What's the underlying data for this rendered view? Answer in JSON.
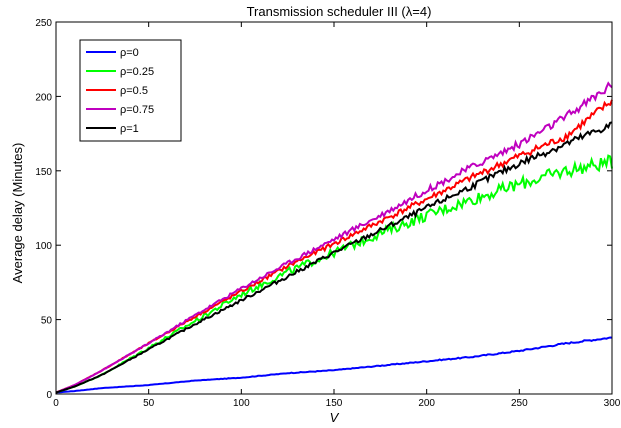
{
  "chart_data": {
    "type": "line",
    "title": "Transmission scheduler III (λ=4)",
    "xlabel": "V",
    "ylabel": "Average delay (Minutes)",
    "xlim": [
      0,
      300
    ],
    "ylim": [
      0,
      250
    ],
    "xticks": [
      0,
      50,
      100,
      150,
      200,
      250,
      300
    ],
    "yticks": [
      0,
      50,
      100,
      150,
      200,
      250
    ],
    "grid": false,
    "legend_position": "top-left",
    "series": [
      {
        "name": "ρ=0",
        "color": "#0000ff",
        "x": [
          0,
          10,
          25,
          50,
          75,
          100,
          125,
          150,
          175,
          200,
          225,
          250,
          275,
          300
        ],
        "y": [
          1,
          2,
          4,
          6,
          9,
          11,
          14,
          16,
          19,
          22,
          25,
          29,
          34,
          38
        ]
      },
      {
        "name": "ρ=0.25",
        "color": "#00ff00",
        "x": [
          0,
          10,
          25,
          50,
          75,
          100,
          125,
          150,
          175,
          200,
          225,
          250,
          275,
          300
        ],
        "y": [
          1,
          5,
          13,
          31,
          49,
          67,
          82,
          95,
          108,
          120,
          131,
          141,
          150,
          156
        ]
      },
      {
        "name": "ρ=0.5",
        "color": "#ff0000",
        "x": [
          0,
          10,
          25,
          50,
          75,
          100,
          125,
          150,
          175,
          200,
          225,
          250,
          275,
          300
        ],
        "y": [
          1,
          6,
          16,
          34,
          52,
          69,
          86,
          101,
          116,
          131,
          146,
          160,
          173,
          197
        ]
      },
      {
        "name": "ρ=0.75",
        "color": "#bf00bf",
        "x": [
          0,
          10,
          25,
          50,
          75,
          100,
          125,
          150,
          175,
          200,
          225,
          250,
          275,
          300
        ],
        "y": [
          1,
          6,
          16,
          34,
          53,
          71,
          88,
          104,
          120,
          137,
          153,
          168,
          186,
          208
        ]
      },
      {
        "name": "ρ=1",
        "color": "#000000",
        "x": [
          0,
          10,
          25,
          50,
          75,
          100,
          125,
          150,
          175,
          200,
          225,
          250,
          275,
          300
        ],
        "y": [
          1,
          5,
          13,
          30,
          47,
          63,
          79,
          95,
          110,
          125,
          140,
          155,
          168,
          181
        ]
      }
    ]
  }
}
